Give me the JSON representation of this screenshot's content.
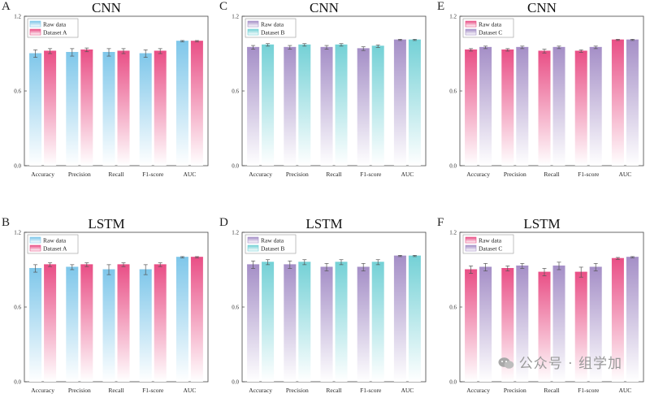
{
  "colors": {
    "raw_blue_top": "#7fc7ea",
    "pink_top": "#e94f86",
    "purple_top": "#a58fc7",
    "teal_top": "#74d1d6",
    "fade": "#ffffff"
  },
  "watermark": "公众号 · 组学加",
  "chart_data": [
    {
      "type": "bar",
      "panel": "A",
      "title": "CNN",
      "categories": [
        "Accuracy",
        "Precision",
        "Recall",
        "F1-score",
        "AUC"
      ],
      "ylim": [
        0.0,
        1.2
      ],
      "ytick_labels": [
        "0.0",
        "0.6",
        "1.2"
      ],
      "legend_position": "top-left",
      "grid": false,
      "series": [
        {
          "name": "Raw data",
          "values": [
            0.9,
            0.91,
            0.91,
            0.9,
            1.0
          ],
          "errors": [
            0.03,
            0.03,
            0.03,
            0.03,
            0.005
          ],
          "colors": [
            "#7fc7ea",
            "#ffffff"
          ]
        },
        {
          "name": "Dataset A",
          "values": [
            0.92,
            0.93,
            0.92,
            0.92,
            1.0
          ],
          "errors": [
            0.02,
            0.015,
            0.02,
            0.02,
            0.005
          ],
          "colors": [
            "#e94f86",
            "#ffffff"
          ]
        }
      ]
    },
    {
      "type": "bar",
      "panel": "C",
      "title": "CNN",
      "categories": [
        "Accuracy",
        "Precision",
        "Recall",
        "F1-score",
        "AUC"
      ],
      "ylim": [
        0.0,
        1.2
      ],
      "ytick_labels": [
        "0.0",
        "0.6",
        "1.2"
      ],
      "legend_position": "top-left",
      "grid": false,
      "series": [
        {
          "name": "Raw data",
          "values": [
            0.95,
            0.95,
            0.95,
            0.94,
            1.01
          ],
          "errors": [
            0.015,
            0.015,
            0.015,
            0.015,
            0.005
          ],
          "colors": [
            "#a58fc7",
            "#ffffff"
          ]
        },
        {
          "name": "Dataset B",
          "values": [
            0.97,
            0.97,
            0.97,
            0.96,
            1.01
          ],
          "errors": [
            0.01,
            0.01,
            0.01,
            0.01,
            0.005
          ],
          "colors": [
            "#74d1d6",
            "#ffffff"
          ]
        }
      ]
    },
    {
      "type": "bar",
      "panel": "E",
      "title": "CNN",
      "categories": [
        "Accuracy",
        "Precision",
        "Recall",
        "F1-score",
        "AUC"
      ],
      "ylim": [
        0.0,
        1.2
      ],
      "ytick_labels": [
        "0.0",
        "0.6",
        "1.2"
      ],
      "legend_position": "top-left",
      "grid": false,
      "series": [
        {
          "name": "Raw data",
          "values": [
            0.93,
            0.93,
            0.92,
            0.92,
            1.01
          ],
          "errors": [
            0.01,
            0.01,
            0.015,
            0.01,
            0.005
          ],
          "colors": [
            "#e94f86",
            "#ffffff"
          ]
        },
        {
          "name": "Dataset C",
          "values": [
            0.95,
            0.95,
            0.95,
            0.95,
            1.01
          ],
          "errors": [
            0.01,
            0.01,
            0.01,
            0.01,
            0.005
          ],
          "colors": [
            "#a58fc7",
            "#ffffff"
          ]
        }
      ]
    },
    {
      "type": "bar",
      "panel": "B",
      "title": "LSTM",
      "categories": [
        "Accuracy",
        "Precision",
        "Recall",
        "F1-score",
        "AUC"
      ],
      "ylim": [
        0.0,
        1.2
      ],
      "ytick_labels": [
        "0.0",
        "0.6",
        "1.2"
      ],
      "legend_position": "top-left",
      "grid": false,
      "series": [
        {
          "name": "Raw data",
          "values": [
            0.91,
            0.92,
            0.9,
            0.9,
            1.0
          ],
          "errors": [
            0.03,
            0.02,
            0.04,
            0.04,
            0.005
          ],
          "colors": [
            "#7fc7ea",
            "#ffffff"
          ]
        },
        {
          "name": "Dataset A",
          "values": [
            0.94,
            0.94,
            0.94,
            0.94,
            1.0
          ],
          "errors": [
            0.015,
            0.015,
            0.015,
            0.015,
            0.005
          ],
          "colors": [
            "#e94f86",
            "#ffffff"
          ]
        }
      ]
    },
    {
      "type": "bar",
      "panel": "D",
      "title": "LSTM",
      "categories": [
        "Accuracy",
        "Precision",
        "Recall",
        "F1-score",
        "AUC"
      ],
      "ylim": [
        0.0,
        1.2
      ],
      "ytick_labels": [
        "0.0",
        "0.6",
        "1.2"
      ],
      "legend_position": "top-left",
      "grid": false,
      "series": [
        {
          "name": "Raw data",
          "values": [
            0.94,
            0.94,
            0.92,
            0.92,
            1.01
          ],
          "errors": [
            0.03,
            0.03,
            0.03,
            0.03,
            0.005
          ],
          "colors": [
            "#a58fc7",
            "#ffffff"
          ]
        },
        {
          "name": "Dataset B",
          "values": [
            0.96,
            0.96,
            0.96,
            0.96,
            1.01
          ],
          "errors": [
            0.02,
            0.02,
            0.02,
            0.02,
            0.005
          ],
          "colors": [
            "#74d1d6",
            "#ffffff"
          ]
        }
      ]
    },
    {
      "type": "bar",
      "panel": "F",
      "title": "LSTM",
      "categories": [
        "Accuracy",
        "Precision",
        "Recall",
        "F1-score",
        "AUC"
      ],
      "ylim": [
        0.0,
        1.2
      ],
      "ytick_labels": [
        "0.0",
        "0.6",
        "1.2"
      ],
      "legend_position": "top-left",
      "grid": false,
      "series": [
        {
          "name": "Raw data",
          "values": [
            0.9,
            0.91,
            0.88,
            0.88,
            0.99
          ],
          "errors": [
            0.03,
            0.02,
            0.03,
            0.04,
            0.008
          ],
          "colors": [
            "#e94f86",
            "#ffffff"
          ]
        },
        {
          "name": "Dataset C",
          "values": [
            0.92,
            0.93,
            0.93,
            0.92,
            1.0
          ],
          "errors": [
            0.03,
            0.02,
            0.03,
            0.03,
            0.005
          ],
          "colors": [
            "#a58fc7",
            "#ffffff"
          ]
        }
      ]
    }
  ]
}
